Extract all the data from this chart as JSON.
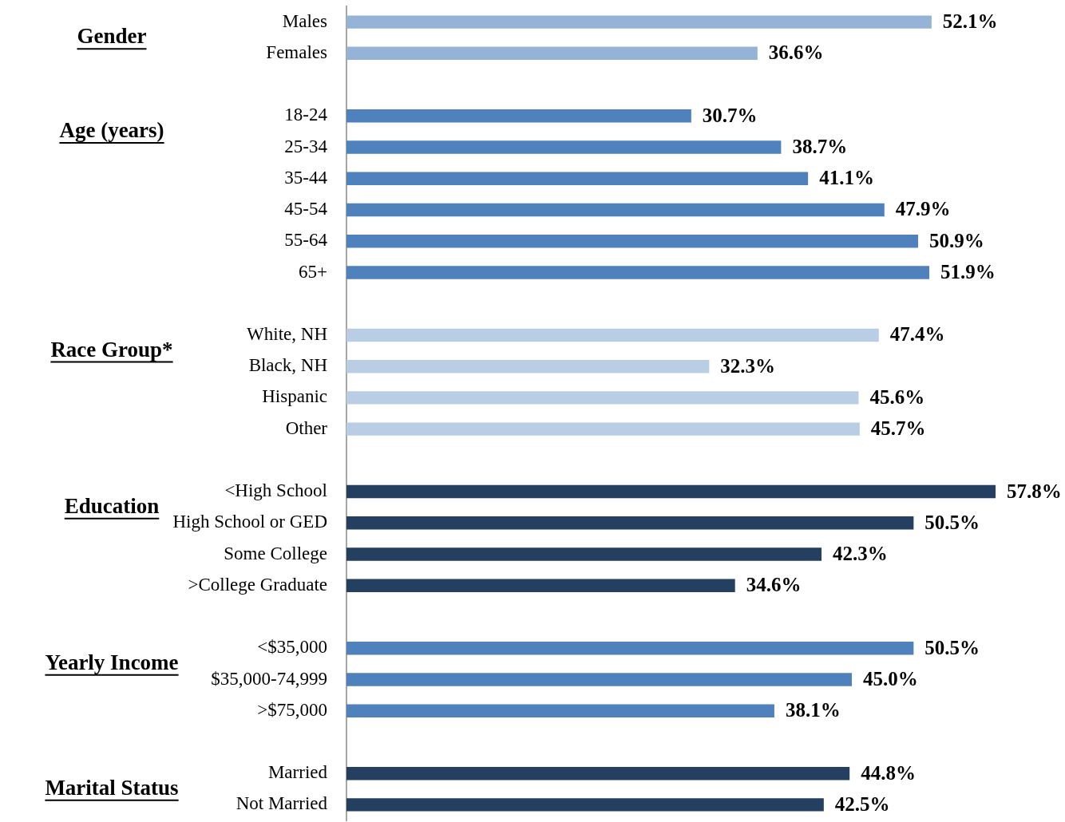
{
  "chart_data": {
    "type": "bar",
    "orientation": "horizontal",
    "categories": [
      "Males",
      "Females",
      null,
      "18-24",
      "25-34",
      "35-44",
      "45-54",
      "55-64",
      "65+",
      null,
      "White, NH",
      "Black, NH",
      "Hispanic",
      "Other",
      null,
      "<High School",
      "High School or GED",
      "Some College",
      ">College Graduate",
      null,
      "<$35,000",
      "$35,000-74,999",
      ">$75,000",
      null,
      "Married",
      "Not Married"
    ],
    "values": [
      52.1,
      36.6,
      null,
      30.7,
      38.7,
      41.1,
      47.9,
      50.9,
      51.9,
      null,
      47.4,
      32.3,
      45.6,
      45.7,
      null,
      57.8,
      50.5,
      42.3,
      34.6,
      null,
      50.5,
      45.0,
      38.1,
      null,
      44.8,
      42.5
    ],
    "colors": [
      "#95b3d7",
      "#95b3d7",
      null,
      "#4f81bd",
      "#4f81bd",
      "#4f81bd",
      "#4f81bd",
      "#4f81bd",
      "#4f81bd",
      null,
      "#b9cde5",
      "#b9cde5",
      "#b9cde5",
      "#b9cde5",
      null,
      "#243f60",
      "#243f60",
      "#243f60",
      "#243f60",
      null,
      "#4f81bd",
      "#4f81bd",
      "#4f81bd",
      null,
      "#243f60",
      "#243f60"
    ],
    "value_labels": [
      "52.1%",
      "36.6%",
      null,
      "30.7%",
      "38.7%",
      "41.1%",
      "47.9%",
      "50.9%",
      "51.9%",
      null,
      "47.4%",
      "32.3%",
      "45.6%",
      "45.7%",
      null,
      "57.8%",
      "50.5%",
      "42.3%",
      "34.6%",
      null,
      "50.5%",
      "45.0%",
      "38.1%",
      null,
      "44.8%",
      "42.5%"
    ],
    "annotations": [
      "Gender",
      "Age (years)",
      "Race Group*",
      "Education",
      "Yearly Income",
      "Marital Status"
    ],
    "grid": false,
    "tick_labels": "y"
  }
}
